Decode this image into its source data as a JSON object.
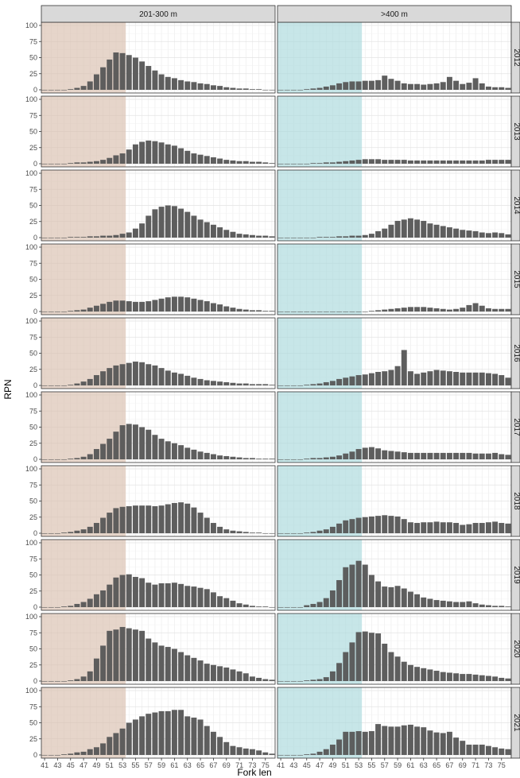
{
  "chart_data": {
    "type": "bar",
    "y_label": "RPN",
    "x_label": "Fork len",
    "ylim": [
      0,
      100
    ],
    "y_ticks": [
      0,
      25,
      50,
      75,
      100
    ],
    "grid": true,
    "columns": [
      "201-300 m",
      ">400 m"
    ],
    "rows": [
      "2012",
      "2013",
      "2014",
      "2015",
      "2016",
      "2017",
      "2018",
      "2019",
      "2020",
      "2021"
    ],
    "bins": [
      41,
      42,
      43,
      44,
      45,
      46,
      47,
      48,
      49,
      50,
      51,
      52,
      53,
      54,
      55,
      56,
      57,
      58,
      59,
      60,
      61,
      62,
      63,
      64,
      65,
      66,
      67,
      68,
      69,
      70,
      71,
      72,
      73,
      74,
      75,
      76
    ],
    "x_tick_labels": [
      "41",
      "43",
      "45",
      "47",
      "49",
      "51",
      "53",
      "55",
      "57",
      "59",
      "61",
      "63",
      "65",
      "67",
      "69",
      "71",
      "73",
      "75"
    ],
    "highlight_regions": [
      {
        "panel_column": "201-300 m",
        "x_range": [
          41,
          53
        ],
        "color": "#d9bfae"
      },
      {
        "panel_column": ">400 m",
        "x_range": [
          41,
          53
        ],
        "color": "#a9d8dc"
      }
    ],
    "bar_color": "#595959",
    "panels": [
      {
        "column": "201-300 m",
        "row": "2012",
        "values": [
          0,
          0,
          0,
          0,
          1,
          3,
          6,
          13,
          24,
          35,
          47,
          58,
          57,
          54,
          50,
          44,
          37,
          30,
          24,
          20,
          18,
          15,
          13,
          12,
          10,
          9,
          7,
          6,
          4,
          3,
          2,
          2,
          1,
          1,
          0,
          0
        ]
      },
      {
        "column": ">400 m",
        "row": "2012",
        "values": [
          0,
          0,
          0,
          0,
          1,
          2,
          3,
          5,
          7,
          10,
          12,
          13,
          13,
          14,
          14,
          15,
          22,
          17,
          14,
          10,
          9,
          9,
          8,
          9,
          10,
          12,
          20,
          14,
          9,
          11,
          18,
          10,
          5,
          4,
          4,
          3
        ]
      },
      {
        "column": "201-300 m",
        "row": "2013",
        "values": [
          0,
          0,
          0,
          0,
          1,
          2,
          2,
          3,
          4,
          6,
          9,
          13,
          16,
          22,
          30,
          34,
          36,
          35,
          33,
          30,
          28,
          24,
          20,
          16,
          14,
          12,
          10,
          8,
          6,
          5,
          4,
          4,
          3,
          3,
          2,
          1
        ]
      },
      {
        "column": ">400 m",
        "row": "2013",
        "values": [
          0,
          0,
          0,
          0,
          0,
          1,
          1,
          2,
          2,
          3,
          4,
          5,
          6,
          7,
          7,
          7,
          6,
          6,
          6,
          6,
          5,
          5,
          5,
          5,
          5,
          5,
          5,
          5,
          5,
          5,
          5,
          5,
          6,
          6,
          6,
          6
        ]
      },
      {
        "column": "201-300 m",
        "row": "2014",
        "values": [
          0,
          0,
          0,
          0,
          1,
          1,
          1,
          2,
          2,
          3,
          3,
          4,
          6,
          8,
          14,
          22,
          34,
          44,
          48,
          50,
          49,
          45,
          40,
          34,
          28,
          24,
          20,
          16,
          12,
          9,
          6,
          5,
          4,
          3,
          3,
          2
        ]
      },
      {
        "column": ">400 m",
        "row": "2014",
        "values": [
          0,
          0,
          0,
          0,
          0,
          0,
          1,
          1,
          1,
          2,
          2,
          3,
          3,
          4,
          6,
          10,
          14,
          20,
          26,
          28,
          30,
          28,
          26,
          22,
          20,
          18,
          16,
          14,
          12,
          11,
          10,
          8,
          7,
          8,
          7,
          5
        ]
      },
      {
        "column": "201-300 m",
        "row": "2015",
        "values": [
          0,
          0,
          0,
          0,
          1,
          2,
          3,
          6,
          9,
          12,
          15,
          17,
          17,
          16,
          15,
          15,
          16,
          18,
          20,
          22,
          23,
          23,
          22,
          20,
          18,
          16,
          13,
          11,
          8,
          6,
          4,
          3,
          2,
          2,
          1,
          1
        ]
      },
      {
        "column": ">400 m",
        "row": "2015",
        "values": [
          0,
          0,
          0,
          0,
          0,
          0,
          0,
          0,
          0,
          0,
          0,
          0,
          0,
          0,
          1,
          2,
          3,
          4,
          5,
          6,
          7,
          7,
          7,
          6,
          5,
          4,
          3,
          4,
          6,
          10,
          13,
          9,
          5,
          4,
          4,
          4
        ]
      },
      {
        "column": "201-300 m",
        "row": "2016",
        "values": [
          0,
          0,
          0,
          0,
          1,
          3,
          6,
          10,
          16,
          22,
          27,
          31,
          33,
          35,
          37,
          36,
          33,
          31,
          27,
          23,
          20,
          18,
          15,
          12,
          10,
          8,
          7,
          6,
          5,
          4,
          3,
          3,
          2,
          2,
          2,
          1
        ]
      },
      {
        "column": ">400 m",
        "row": "2016",
        "values": [
          0,
          0,
          0,
          0,
          1,
          2,
          3,
          5,
          7,
          10,
          12,
          14,
          16,
          17,
          19,
          21,
          22,
          24,
          30,
          55,
          22,
          18,
          20,
          22,
          24,
          23,
          22,
          21,
          20,
          20,
          20,
          20,
          19,
          18,
          16,
          12
        ]
      },
      {
        "column": "201-300 m",
        "row": "2017",
        "values": [
          0,
          0,
          0,
          0,
          1,
          2,
          4,
          8,
          16,
          24,
          32,
          43,
          53,
          55,
          54,
          50,
          46,
          38,
          32,
          28,
          25,
          22,
          18,
          15,
          12,
          10,
          8,
          6,
          5,
          4,
          3,
          2,
          2,
          1,
          1,
          1
        ]
      },
      {
        "column": ">400 m",
        "row": "2017",
        "values": [
          0,
          0,
          0,
          0,
          1,
          2,
          2,
          3,
          4,
          6,
          9,
          12,
          16,
          18,
          19,
          17,
          14,
          13,
          12,
          11,
          10,
          10,
          10,
          10,
          10,
          10,
          10,
          10,
          10,
          10,
          9,
          9,
          9,
          10,
          8,
          7
        ]
      },
      {
        "column": "201-300 m",
        "row": "2018",
        "values": [
          0,
          0,
          0,
          1,
          2,
          4,
          6,
          10,
          16,
          24,
          32,
          39,
          41,
          42,
          43,
          43,
          43,
          42,
          43,
          45,
          47,
          48,
          46,
          40,
          32,
          24,
          16,
          10,
          6,
          4,
          3,
          2,
          1,
          1,
          0,
          0
        ]
      },
      {
        "column": ">400 m",
        "row": "2018",
        "values": [
          0,
          0,
          0,
          0,
          1,
          2,
          4,
          6,
          10,
          15,
          20,
          22,
          24,
          25,
          26,
          27,
          28,
          27,
          26,
          22,
          17,
          16,
          17,
          17,
          18,
          17,
          17,
          16,
          13,
          14,
          16,
          16,
          17,
          18,
          16,
          15
        ]
      },
      {
        "column": "201-300 m",
        "row": "2019",
        "values": [
          0,
          0,
          0,
          1,
          2,
          5,
          8,
          13,
          20,
          26,
          35,
          46,
          50,
          51,
          47,
          45,
          38,
          35,
          37,
          37,
          38,
          36,
          33,
          32,
          30,
          28,
          23,
          17,
          14,
          10,
          6,
          4,
          2,
          1,
          1,
          0
        ]
      },
      {
        "column": ">400 m",
        "row": "2019",
        "values": [
          0,
          0,
          0,
          0,
          3,
          5,
          8,
          14,
          26,
          42,
          62,
          66,
          72,
          66,
          50,
          40,
          32,
          31,
          33,
          29,
          24,
          20,
          15,
          13,
          11,
          10,
          9,
          8,
          8,
          9,
          6,
          4,
          3,
          2,
          2,
          1
        ]
      },
      {
        "column": "201-300 m",
        "row": "2020",
        "values": [
          0,
          0,
          0,
          0,
          1,
          3,
          7,
          15,
          35,
          55,
          78,
          80,
          84,
          82,
          80,
          78,
          66,
          60,
          55,
          53,
          50,
          45,
          40,
          36,
          32,
          27,
          25,
          23,
          21,
          18,
          15,
          12,
          7,
          5,
          3,
          2
        ]
      },
      {
        "column": ">400 m",
        "row": "2020",
        "values": [
          0,
          0,
          0,
          0,
          1,
          2,
          3,
          6,
          15,
          28,
          45,
          60,
          76,
          77,
          75,
          74,
          58,
          45,
          38,
          30,
          25,
          22,
          20,
          18,
          16,
          14,
          13,
          12,
          11,
          11,
          10,
          9,
          8,
          7,
          5,
          4
        ]
      },
      {
        "column": "201-300 m",
        "row": "2021",
        "values": [
          0,
          0,
          0,
          1,
          2,
          4,
          5,
          9,
          12,
          18,
          28,
          34,
          41,
          50,
          55,
          60,
          64,
          66,
          68,
          68,
          70,
          70,
          60,
          58,
          55,
          45,
          36,
          28,
          20,
          14,
          12,
          10,
          9,
          7,
          4,
          2
        ]
      },
      {
        "column": ">400 m",
        "row": "2021",
        "values": [
          0,
          0,
          0,
          0,
          1,
          2,
          5,
          9,
          16,
          24,
          36,
          36,
          37,
          36,
          37,
          48,
          45,
          44,
          44,
          46,
          47,
          44,
          43,
          38,
          35,
          34,
          36,
          27,
          22,
          16,
          16,
          16,
          14,
          12,
          10,
          9
        ]
      }
    ]
  }
}
